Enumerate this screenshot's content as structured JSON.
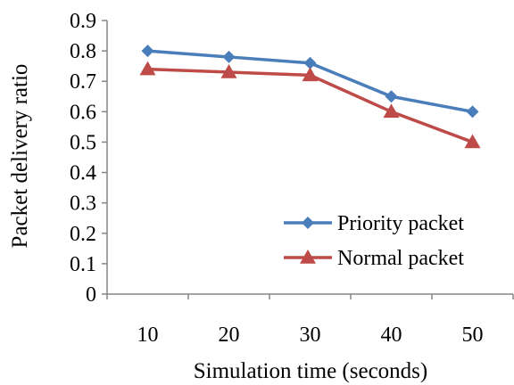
{
  "chart_data": {
    "type": "line",
    "x": [
      10,
      20,
      30,
      40,
      50
    ],
    "categories": [
      "10",
      "20",
      "30",
      "40",
      "50"
    ],
    "xlabel": "Simulation time (seconds)",
    "ylabel": "Packet delivery ratio",
    "ylim": [
      0,
      0.9
    ],
    "yticks": [
      "0",
      "0.1",
      "0.2",
      "0.3",
      "0.4",
      "0.5",
      "0.6",
      "0.7",
      "0.8",
      "0.9"
    ],
    "grid": false,
    "legend_position": "bottom-right",
    "series": [
      {
        "name": "Priority packet",
        "values": [
          0.8,
          0.78,
          0.76,
          0.65,
          0.6
        ],
        "color": "#4A7EBB",
        "marker": "diamond"
      },
      {
        "name": "Normal packet",
        "values": [
          0.74,
          0.73,
          0.72,
          0.6,
          0.5
        ],
        "color": "#BE4B48",
        "marker": "triangle"
      }
    ]
  }
}
